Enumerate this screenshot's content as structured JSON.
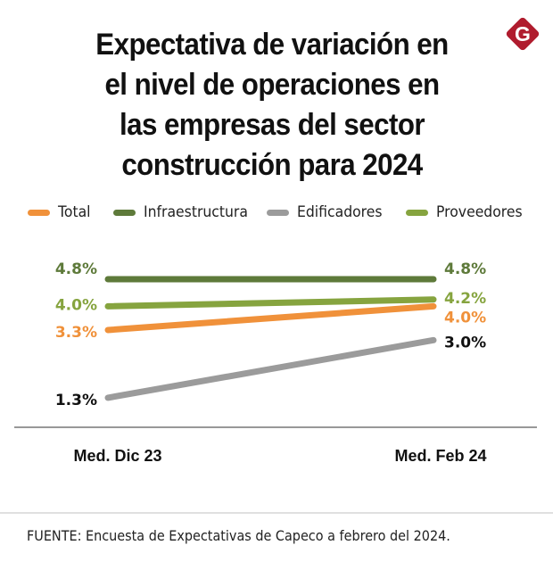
{
  "header": {
    "title_lines": [
      "Expectativa de variación en",
      "el nivel de operaciones en",
      "las empresas del sector",
      "construcción para 2024"
    ],
    "logo": {
      "icon": "brand-g-diamond-icon",
      "letter": "G",
      "color": "#b01c2e"
    }
  },
  "chart_data": {
    "type": "line",
    "title": "Expectativa de variación en el nivel de operaciones en las empresas del sector construcción para 2024",
    "xlabel": "",
    "ylabel": "",
    "x": [
      "Med. Dic 23",
      "Med. Feb 24"
    ],
    "ylim": [
      0.85,
      4.8
    ],
    "grid": false,
    "legend_position": "top",
    "series": [
      {
        "name": "Total",
        "color": "#f0913a",
        "values": [
          3.3,
          4.0
        ],
        "labels": [
          "3.3%",
          "4.0%"
        ],
        "label_color": "#f0913a"
      },
      {
        "name": "Infraestructura",
        "color": "#5e7a3a",
        "values": [
          4.8,
          4.8
        ],
        "labels": [
          "4.8%",
          "4.8%"
        ],
        "label_color": "#5e7a3a"
      },
      {
        "name": "Edificadores",
        "color": "#9b9b9b",
        "values": [
          1.3,
          3.0
        ],
        "labels": [
          "1.3%",
          "3.0%"
        ],
        "label_color": "#111111"
      },
      {
        "name": "Proveedores",
        "color": "#86a43f",
        "values": [
          4.0,
          4.2
        ],
        "labels": [
          "4.0%",
          "4.2%"
        ],
        "label_color": "#86a43f"
      }
    ]
  },
  "footer": {
    "source": "FUENTE: Encuesta de Expectativas de Capeco a febrero del 2024."
  }
}
